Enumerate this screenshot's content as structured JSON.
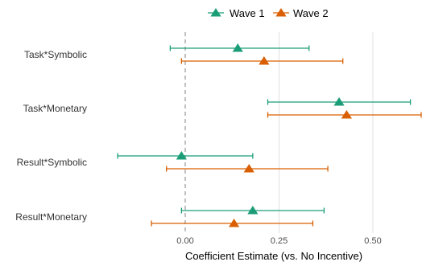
{
  "chart_data": {
    "type": "scatter",
    "orientation": "horizontal",
    "xlabel": "Coefficient Estimate (vs. No Incentive)",
    "ylabel": "",
    "xlim": [
      -0.2,
      0.63
    ],
    "x_ticks": [
      "0.00",
      "0.25",
      "0.50"
    ],
    "x_tick_values": [
      0,
      0.25,
      0.5
    ],
    "reference_line": 0,
    "reference_line_style": "dashed",
    "grid": "vertical-major",
    "legend_position": "top",
    "categories": [
      "Task*Symbolic",
      "Task*Monetary",
      "Result*Symbolic",
      "Result*Monetary"
    ],
    "series": [
      {
        "name": "Wave 1",
        "color": "#1b9e77",
        "marker": "triangle",
        "estimates": [
          0.14,
          0.41,
          -0.01,
          0.18
        ],
        "ci_low": [
          -0.04,
          0.22,
          -0.18,
          -0.01
        ],
        "ci_high": [
          0.33,
          0.6,
          0.18,
          0.37
        ]
      },
      {
        "name": "Wave 2",
        "color": "#d95f02",
        "marker": "triangle",
        "estimates": [
          0.21,
          0.43,
          0.17,
          0.13
        ],
        "ci_low": [
          -0.01,
          0.22,
          -0.05,
          -0.09
        ],
        "ci_high": [
          0.42,
          0.63,
          0.38,
          0.34
        ]
      }
    ]
  }
}
